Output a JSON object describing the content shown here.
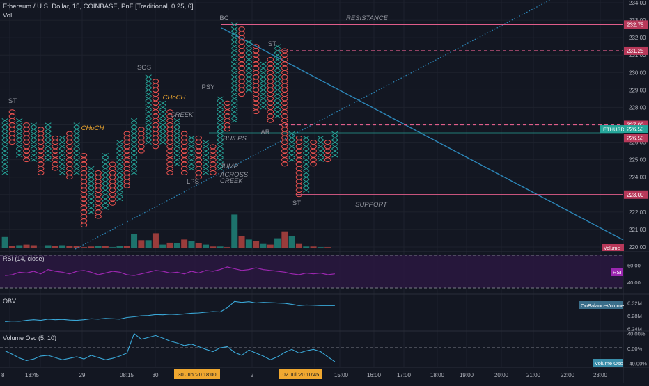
{
  "header": {
    "title": "Ethereum / U.S. Dollar, 15, COINBASE, PnF [Traditional, 0.25, 6]",
    "vol_label": "Vol"
  },
  "colors": {
    "background": "#131722",
    "x_color": "#26a69a",
    "o_color": "#ef5350",
    "resistance_line": "#e05d8a",
    "trend_line": "#2c86b8",
    "rsi_line": "#9c27b0",
    "oscillator_line": "#3aa8d8",
    "annotation_orange": "#f0a830",
    "annotation_gray": "#9598a1"
  },
  "chart_data": [
    {
      "type": "point-and-figure",
      "title": "Ethereum / U.S. Dollar, 15, COINBASE, PnF [Traditional, 0.25, 6]",
      "box_size": 0.25,
      "price_axis": {
        "ylim": [
          220.0,
          234.0
        ],
        "ticks": [
          "234.00",
          "233.00",
          "232.00",
          "231.00",
          "230.00",
          "229.00",
          "228.00",
          "227.00",
          "226.00",
          "225.00",
          "224.00",
          "223.00",
          "222.00",
          "221.00",
          "220.00"
        ]
      },
      "columns": [
        {
          "type": "X",
          "low": 224.25,
          "high": 227.25
        },
        {
          "type": "O",
          "low": 226.0,
          "high": 227.75
        },
        {
          "type": "X",
          "low": 225.25,
          "high": 227.25
        },
        {
          "type": "O",
          "low": 225.0,
          "high": 227.0
        },
        {
          "type": "X",
          "low": 225.0,
          "high": 227.0
        },
        {
          "type": "O",
          "low": 224.25,
          "high": 226.75
        },
        {
          "type": "X",
          "low": 225.0,
          "high": 227.0
        },
        {
          "type": "O",
          "low": 224.5,
          "high": 226.25
        },
        {
          "type": "X",
          "low": 224.25,
          "high": 226.25
        },
        {
          "type": "O",
          "low": 224.0,
          "high": 226.5
        },
        {
          "type": "X",
          "low": 224.25,
          "high": 227.0
        },
        {
          "type": "O",
          "low": 221.25,
          "high": 225.25
        },
        {
          "type": "X",
          "low": 222.0,
          "high": 224.5
        },
        {
          "type": "O",
          "low": 221.75,
          "high": 224.25
        },
        {
          "type": "X",
          "low": 222.25,
          "high": 225.25
        },
        {
          "type": "O",
          "low": 222.5,
          "high": 224.75
        },
        {
          "type": "X",
          "low": 222.75,
          "high": 226.0
        },
        {
          "type": "O",
          "low": 223.5,
          "high": 226.5
        },
        {
          "type": "X",
          "low": 224.25,
          "high": 227.25
        },
        {
          "type": "O",
          "low": 225.5,
          "high": 226.75
        },
        {
          "type": "X",
          "low": 226.0,
          "high": 229.75
        },
        {
          "type": "O",
          "low": 225.75,
          "high": 229.5
        },
        {
          "type": "X",
          "low": 226.0,
          "high": 228.25
        },
        {
          "type": "O",
          "low": 224.25,
          "high": 227.75
        },
        {
          "type": "X",
          "low": 224.75,
          "high": 227.25
        },
        {
          "type": "O",
          "low": 224.25,
          "high": 226.5
        },
        {
          "type": "X",
          "low": 224.5,
          "high": 226.25
        },
        {
          "type": "O",
          "low": 224.0,
          "high": 226.25
        },
        {
          "type": "X",
          "low": 224.25,
          "high": 226.0
        },
        {
          "type": "O",
          "low": 224.25,
          "high": 225.75
        },
        {
          "type": "X",
          "low": 224.5,
          "high": 228.5
        },
        {
          "type": "O",
          "low": 226.75,
          "high": 228.25
        },
        {
          "type": "X",
          "low": 227.25,
          "high": 232.75
        },
        {
          "type": "O",
          "low": 228.75,
          "high": 232.5
        },
        {
          "type": "X",
          "low": 229.0,
          "high": 231.75
        },
        {
          "type": "O",
          "low": 227.75,
          "high": 231.5
        },
        {
          "type": "X",
          "low": 228.0,
          "high": 230.5
        },
        {
          "type": "O",
          "low": 227.25,
          "high": 230.75
        },
        {
          "type": "X",
          "low": 227.5,
          "high": 231.5
        },
        {
          "type": "O",
          "low": 224.75,
          "high": 231.25
        },
        {
          "type": "X",
          "low": 225.0,
          "high": 226.5
        },
        {
          "type": "O",
          "low": 223.0,
          "high": 226.25
        },
        {
          "type": "X",
          "low": 223.25,
          "high": 226.25
        },
        {
          "type": "O",
          "low": 224.75,
          "high": 226.0
        },
        {
          "type": "X",
          "low": 225.0,
          "high": 226.25
        },
        {
          "type": "O",
          "low": 225.0,
          "high": 226.0
        },
        {
          "type": "X",
          "low": 225.25,
          "high": 226.5
        }
      ],
      "horizontal_levels": [
        {
          "price": 232.75,
          "label": "232.75",
          "style": "solid"
        },
        {
          "price": 231.25,
          "label": "231.25",
          "style": "dashed"
        },
        {
          "price": 227.0,
          "label": "227.00",
          "style": "dashed"
        },
        {
          "price": 223.0,
          "label": "223.00",
          "style": "solid"
        }
      ],
      "current_price_label": "ETHUSD",
      "current_price": "226.50",
      "volume_label": "Volume",
      "annotations": [
        {
          "text": "ST",
          "style": "gray"
        },
        {
          "text": "CHoCH",
          "style": "orange"
        },
        {
          "text": "SOS",
          "style": "gray"
        },
        {
          "text": "CHoCH",
          "style": "orange"
        },
        {
          "text": "CREEK",
          "style": "gray"
        },
        {
          "text": "PSY",
          "style": "gray"
        },
        {
          "text": "BC",
          "style": "gray"
        },
        {
          "text": "ST",
          "style": "gray"
        },
        {
          "text": "BU/LPS",
          "style": "gray"
        },
        {
          "text": "AR",
          "style": "gray"
        },
        {
          "text": "RESISTANCE",
          "style": "gray"
        },
        {
          "text": "LPS",
          "style": "gray"
        },
        {
          "text": "JUMP",
          "style": "gray"
        },
        {
          "text": "ACROSS",
          "style": "gray"
        },
        {
          "text": "CREEK",
          "style": "gray"
        },
        {
          "text": "ST",
          "style": "gray"
        },
        {
          "text": "SUPPORT",
          "style": "gray"
        }
      ],
      "volume_bars": [
        {
          "dir": "up",
          "v": 18
        },
        {
          "dir": "down",
          "v": 4
        },
        {
          "dir": "up",
          "v": 5
        },
        {
          "dir": "down",
          "v": 6
        },
        {
          "dir": "down",
          "v": 5
        },
        {
          "dir": "down",
          "v": 1
        },
        {
          "dir": "up",
          "v": 5
        },
        {
          "dir": "down",
          "v": 4
        },
        {
          "dir": "up",
          "v": 5
        },
        {
          "dir": "down",
          "v": 4
        },
        {
          "dir": "down",
          "v": 4
        },
        {
          "dir": "down",
          "v": 2
        },
        {
          "dir": "down",
          "v": 3
        },
        {
          "dir": "up",
          "v": 4
        },
        {
          "dir": "down",
          "v": 4
        },
        {
          "dir": "up",
          "v": 2
        },
        {
          "dir": "up",
          "v": 4
        },
        {
          "dir": "down",
          "v": 4
        },
        {
          "dir": "up",
          "v": 23
        },
        {
          "dir": "down",
          "v": 13
        },
        {
          "dir": "up",
          "v": 13
        },
        {
          "dir": "down",
          "v": 24
        },
        {
          "dir": "up",
          "v": 6
        },
        {
          "dir": "down",
          "v": 9
        },
        {
          "dir": "up",
          "v": 8
        },
        {
          "dir": "down",
          "v": 14
        },
        {
          "dir": "up",
          "v": 12
        },
        {
          "dir": "down",
          "v": 8
        },
        {
          "dir": "up",
          "v": 6
        },
        {
          "dir": "down",
          "v": 3
        },
        {
          "dir": "up",
          "v": 3
        },
        {
          "dir": "down",
          "v": 2
        },
        {
          "dir": "up",
          "v": 54
        },
        {
          "dir": "down",
          "v": 19
        },
        {
          "dir": "up",
          "v": 14
        },
        {
          "dir": "down",
          "v": 12
        },
        {
          "dir": "up",
          "v": 7
        },
        {
          "dir": "down",
          "v": 6
        },
        {
          "dir": "up",
          "v": 16
        },
        {
          "dir": "down",
          "v": 27
        },
        {
          "dir": "up",
          "v": 19
        },
        {
          "dir": "down",
          "v": 7
        },
        {
          "dir": "up",
          "v": 3
        },
        {
          "dir": "down",
          "v": 3
        },
        {
          "dir": "up",
          "v": 2
        },
        {
          "dir": "down",
          "v": 2
        },
        {
          "dir": "up",
          "v": 1
        }
      ]
    },
    {
      "type": "line",
      "title": "RSI (14, close)",
      "legend_badge": "RSI",
      "ticks": [
        "60.00",
        "40.00"
      ],
      "ylim": [
        27,
        75
      ],
      "values": [
        48,
        49,
        52,
        51,
        53,
        50,
        55,
        53,
        52,
        50,
        53,
        54,
        52,
        49,
        51,
        53,
        52,
        49,
        48,
        50,
        52,
        54,
        53,
        51,
        52,
        50,
        53,
        51,
        54,
        53,
        55,
        58,
        56,
        54,
        55,
        57,
        55,
        54,
        53,
        52,
        50,
        49,
        51,
        50,
        51,
        49,
        50
      ]
    },
    {
      "type": "line",
      "title": "OBV",
      "legend_badge": "OnBalanceVolume",
      "ticks": [
        "6.32M",
        "6.28M",
        "6.24M"
      ],
      "ylim": [
        6.235,
        6.345
      ],
      "values": [
        6.262,
        6.264,
        6.263,
        6.266,
        6.268,
        6.266,
        6.27,
        6.268,
        6.269,
        6.267,
        6.266,
        6.268,
        6.271,
        6.27,
        6.272,
        6.271,
        6.27,
        6.275,
        6.277,
        6.28,
        6.281,
        6.284,
        6.283,
        6.285,
        6.284,
        6.286,
        6.288,
        6.289,
        6.291,
        6.293,
        6.292,
        6.305,
        6.325,
        6.322,
        6.324,
        6.32,
        6.322,
        6.321,
        6.32,
        6.319,
        6.316,
        6.312,
        6.314,
        6.313,
        6.312,
        6.312,
        6.312
      ]
    },
    {
      "type": "line",
      "title": "Volume Osc (5, 10)",
      "legend_badge": "Volume Osc",
      "ticks": [
        "40.00%",
        "0.00%",
        "-40.00%"
      ],
      "ylim": [
        -48,
        45
      ],
      "values": [
        -6,
        -15,
        -25,
        -32,
        -28,
        -20,
        -18,
        -24,
        -30,
        -26,
        -22,
        -28,
        -18,
        -24,
        -30,
        -26,
        -20,
        -12,
        40,
        25,
        30,
        35,
        28,
        20,
        15,
        8,
        12,
        5,
        -2,
        -8,
        2,
        5,
        -10,
        -18,
        -4,
        -12,
        -20,
        -30,
        -22,
        -10,
        -2,
        -12,
        -6,
        -2,
        -8,
        -22,
        -35
      ]
    }
  ],
  "time_axis": {
    "labels": [
      "8",
      "13:45",
      "29",
      "08:15",
      "30",
      "2",
      "15:00",
      "16:00",
      "17:00",
      "18:00",
      "19:00",
      "20:00",
      "21:00",
      "22:00",
      "23:00"
    ],
    "highlights": [
      "30 Jun '20  18:00",
      "02 Jul '20  10:45"
    ]
  }
}
